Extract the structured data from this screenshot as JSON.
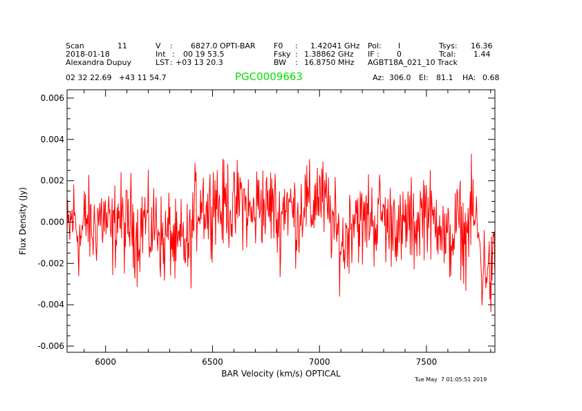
{
  "header": {
    "scan_label": "Scan",
    "scan_value": "11",
    "date": "2018-01-18",
    "observer": "Alexandra Dupuy",
    "v_label": "V",
    "v_value": "6827.0 OPTI-BAR",
    "int_label": "Int",
    "int_value": "00 19 53.5",
    "lst_label": "LST",
    "lst_value": "+03 13 20.3",
    "f0_label": "F0",
    "f0_value": "1.42041 GHz",
    "fsky_label": "Fsky",
    "fsky_value": "1.38862 GHz",
    "bw_label": "BW",
    "bw_value": "16.8750 MHz",
    "pol_label": "Pol:",
    "pol_value": "I",
    "if_label": "IF :",
    "if_value": "0",
    "project": "AGBT18A_021_10 Track",
    "tsys_label": "Tsys:",
    "tsys_value": "16.36",
    "tcal_label": "Tcal:",
    "tcal_value": "1.44",
    "coords": "02 32 22.69   +43 11 54.7",
    "object": "PGC0009663",
    "az_label": "Az:",
    "az_value": "306.0",
    "el_label": "El:",
    "el_value": "81.1",
    "ha_label": "HA:",
    "ha_value": "0.68"
  },
  "footer": {
    "timestamp": "Tue May  7 01:05:51 2019"
  },
  "chart_data": {
    "type": "line",
    "xlabel": "BAR Velocity (km/s) OPTICAL",
    "ylabel": "Flux Density (Jy)",
    "xlim": [
      5820,
      7820
    ],
    "ylim": [
      -0.0063,
      0.0064
    ],
    "xticks": [
      6000,
      6500,
      7000,
      7500
    ],
    "xtick_labels": [
      "6000",
      "6500",
      "7000",
      "7500"
    ],
    "yticks": [
      -0.006,
      -0.004,
      -0.002,
      0.0,
      0.002,
      0.004,
      0.006
    ],
    "ytick_labels": [
      "-0.006",
      "-0.004",
      "-0.002",
      "0.000",
      "0.002",
      "0.004",
      "0.006"
    ],
    "series": [
      {
        "color": "#ff0000",
        "x": [
          5820,
          5850,
          5880,
          5910,
          5940,
          5970,
          6000,
          6030,
          6060,
          6090,
          6120,
          6150,
          6180,
          6210,
          6240,
          6270,
          6300,
          6330,
          6360,
          6390,
          6420,
          6450,
          6480,
          6510,
          6540,
          6570,
          6600,
          6630,
          6660,
          6690,
          6720,
          6750,
          6780,
          6810,
          6840,
          6870,
          6900,
          6930,
          6960,
          6990,
          7020,
          7050,
          7080,
          7110,
          7140,
          7170,
          7200,
          7230,
          7260,
          7290,
          7320,
          7350,
          7380,
          7410,
          7440,
          7470,
          7500,
          7530,
          7560,
          7590,
          7620,
          7650,
          7680,
          7710,
          7740,
          7760,
          7780,
          7800,
          7820
        ],
        "y": [
          -0.0008,
          0.0004,
          -0.0009,
          0.0002,
          -0.0005,
          0.0003,
          0.0001,
          -0.0007,
          0.0005,
          -0.0004,
          0.0002,
          -0.0008,
          0.0003,
          -0.0006,
          0.0001,
          -0.0012,
          -0.0004,
          -0.0015,
          -0.0009,
          -0.0013,
          0.0006,
          0.0012,
          0.0004,
          0.0014,
          0.0005,
          0.0011,
          0.0003,
          0.0013,
          0.0006,
          0.0002,
          0.0012,
          0.0005,
          0.001,
          -0.0002,
          0.0011,
          0.0006,
          0.0001,
          0.0012,
          0.0004,
          0.0015,
          0.0009,
          0.0003,
          -0.0006,
          -0.0012,
          -0.0002,
          0.0007,
          -0.0004,
          0.0005,
          -0.0001,
          0.0006,
          -0.0003,
          0.0004,
          -0.0008,
          0.0002,
          -0.0004,
          0.0003,
          0.0009,
          -0.0002,
          0.0005,
          -0.0012,
          -0.0007,
          0.0001,
          -0.0009,
          0.0006,
          -0.0004,
          -0.0025,
          -0.0018,
          -0.0029,
          -0.0015
        ]
      }
    ]
  }
}
